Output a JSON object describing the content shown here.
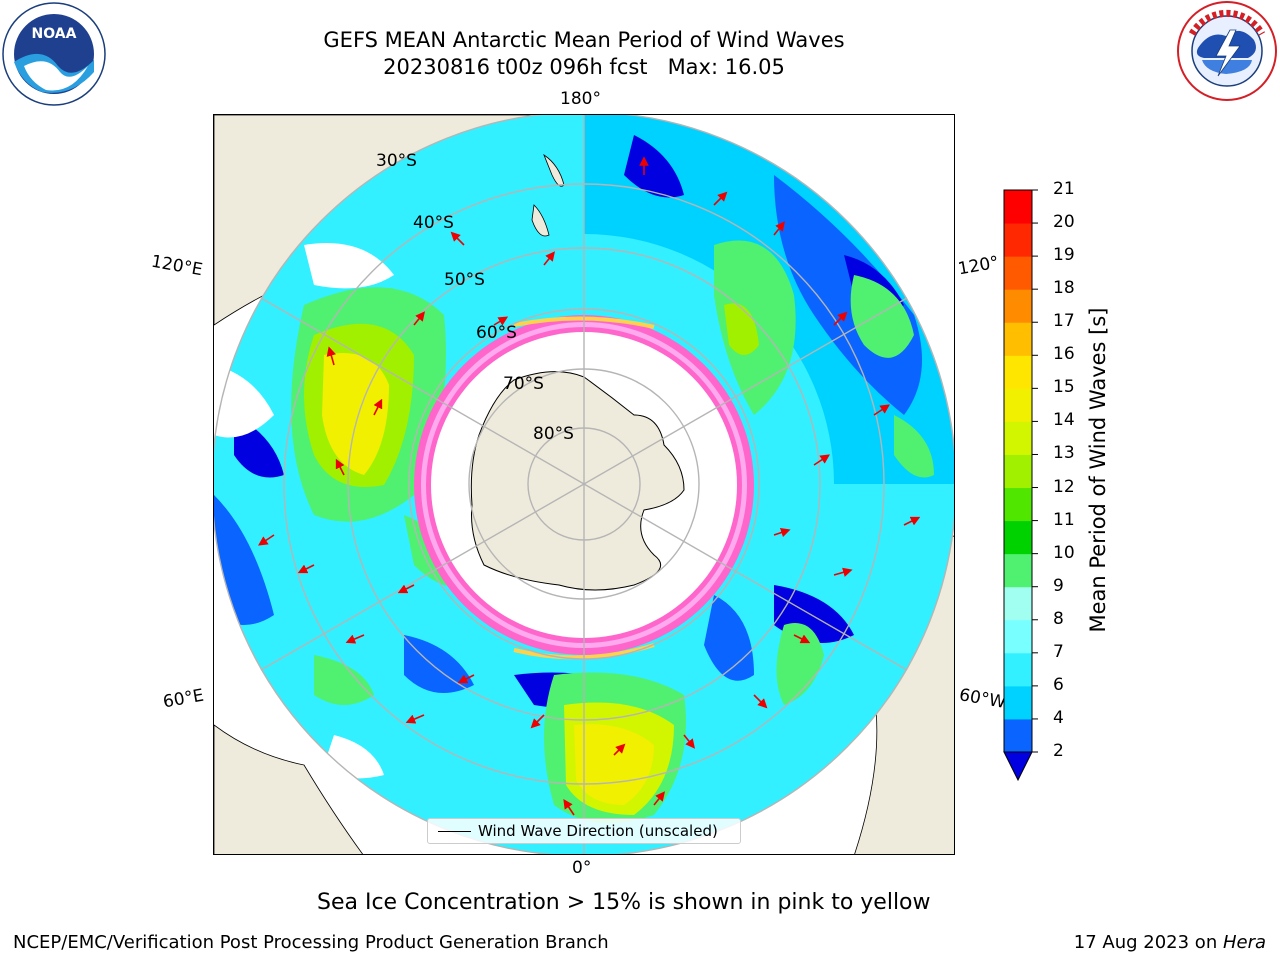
{
  "title": {
    "line1": "GEFS MEAN Antarctic Mean Period of Wind Waves",
    "line2": "20230816 t00z 096h fcst   Max: 16.05"
  },
  "logos": {
    "left": {
      "icon": "noaa-logo",
      "text": "NOAA",
      "ring_text": "NATIONAL OCEANIC AND ATMOSPHERIC ADMINISTRATION · U.S. DEPARTMENT OF COMMERCE"
    },
    "right": {
      "icon": "nws-logo",
      "ring_text": "NATIONAL WEATHER SERVICE"
    }
  },
  "map": {
    "projection": "south-polar-stereographic",
    "longitude_labels": {
      "top": "180°",
      "bottom": "0°",
      "left_upper": "120°E",
      "left_lower": "60°E",
      "right_upper": "120°",
      "right_lower": "60°W"
    },
    "latitude_labels": [
      "30°S",
      "40°S",
      "50°S",
      "60°S",
      "70°S",
      "80°S"
    ],
    "land_color": "#efebdc",
    "ice_colors": [
      "#ff66cc",
      "#ffaaee",
      "#ffd24d"
    ]
  },
  "colorbar": {
    "label": "Mean Period of Wind Waves [s]",
    "ticks": [
      "2",
      "4",
      "6",
      "7",
      "8",
      "9",
      "10",
      "11",
      "12",
      "13",
      "14",
      "15",
      "16",
      "17",
      "18",
      "19",
      "20",
      "21"
    ],
    "colors": [
      "#0000e0",
      "#0a64ff",
      "#00d2ff",
      "#32f0ff",
      "#78ffff",
      "#a0fff0",
      "#50f070",
      "#00d200",
      "#50e600",
      "#a0f000",
      "#d2f500",
      "#f0f000",
      "#ffe600",
      "#ffbe00",
      "#ff8c00",
      "#ff5a00",
      "#ff2800",
      "#ff0000"
    ],
    "extend": "min"
  },
  "legend": {
    "entry": "Wind Wave Direction (unscaled)",
    "arrow_color": "#ee0000"
  },
  "notes": {
    "ice": "Sea Ice Concentration > 15% is shown in pink to yellow",
    "footer_left": "NCEP/EMC/Verification Post Processing Product Generation Branch",
    "footer_date": "17 Aug 2023 on ",
    "footer_machine": "Hera"
  }
}
